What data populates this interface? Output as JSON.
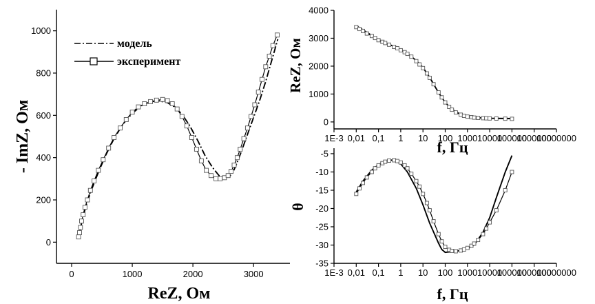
{
  "chart_data": [
    {
      "type": "scatter",
      "panel": "nyquist",
      "xlabel": "ReZ, Ом",
      "ylabel": "- ImZ, Ом",
      "xlim": [
        -250,
        3600
      ],
      "ylim": [
        -100,
        1100
      ],
      "xticks": [
        0,
        1000,
        2000,
        3000
      ],
      "yticks": [
        0,
        200,
        400,
        600,
        800,
        1000
      ],
      "legend_position": "top-left",
      "legend": {
        "model": "модель",
        "experiment": "эксперимент"
      },
      "series": [
        {
          "name": "модель",
          "style": "dash-dot",
          "x": [
            120,
            170,
            240,
            330,
            440,
            560,
            700,
            850,
            1000,
            1150,
            1300,
            1450,
            1580,
            1700,
            1820,
            1950,
            2080,
            2200,
            2320,
            2430,
            2530,
            2600,
            2660,
            2720,
            2800,
            2900,
            3000,
            3100,
            3200,
            3290,
            3360,
            3400
          ],
          "y": [
            20,
            100,
            175,
            250,
            330,
            410,
            490,
            560,
            610,
            645,
            665,
            668,
            660,
            640,
            605,
            550,
            480,
            410,
            355,
            315,
            305,
            310,
            330,
            370,
            430,
            510,
            590,
            670,
            760,
            850,
            920,
            960
          ]
        },
        {
          "name": "эксперимент",
          "style": "solid-square",
          "x": [
            115,
            130,
            145,
            165,
            190,
            220,
            260,
            310,
            370,
            440,
            520,
            610,
            700,
            800,
            900,
            1000,
            1100,
            1200,
            1300,
            1400,
            1500,
            1580,
            1660,
            1740,
            1820,
            1900,
            1980,
            2060,
            2140,
            2220,
            2300,
            2380,
            2450,
            2520,
            2580,
            2630,
            2680,
            2730,
            2780,
            2840,
            2900,
            2960,
            3020,
            3080,
            3140,
            3200,
            3260,
            3320,
            3390
          ],
          "y": [
            25,
            45,
            70,
            100,
            130,
            165,
            200,
            245,
            290,
            340,
            390,
            445,
            495,
            540,
            580,
            615,
            640,
            655,
            665,
            672,
            675,
            670,
            655,
            630,
            595,
            550,
            495,
            440,
            385,
            340,
            315,
            300,
            300,
            305,
            315,
            335,
            365,
            400,
            440,
            490,
            540,
            595,
            650,
            710,
            770,
            830,
            880,
            930,
            980
          ]
        }
      ]
    },
    {
      "type": "line",
      "panel": "bode-magnitude",
      "xlabel": "f, Гц",
      "ylabel": "ReZ, Ом",
      "xscale": "log",
      "xlim": [
        0.001,
        10000000
      ],
      "ylim": [
        -250,
        4000
      ],
      "xticks": [
        "1E-3",
        "0,01",
        "0,1",
        "1",
        "10",
        "100",
        "1000",
        "10000",
        "100000",
        "1000000",
        "10000000"
      ],
      "yticks": [
        0,
        1000,
        2000,
        3000,
        4000
      ],
      "series": [
        {
          "name": "модель",
          "x": [
            0.01,
            0.02,
            0.05,
            0.1,
            0.2,
            0.5,
            1,
            2,
            5,
            10,
            20,
            50,
            100,
            200,
            500,
            1000,
            2000,
            5000,
            10000,
            100000
          ],
          "y": [
            3450,
            3300,
            3100,
            2950,
            2850,
            2700,
            2580,
            2450,
            2200,
            1950,
            1600,
            1050,
            700,
            450,
            270,
            200,
            160,
            140,
            130,
            120
          ]
        },
        {
          "name": "эксперимент",
          "x": [
            0.01,
            0.014,
            0.02,
            0.03,
            0.05,
            0.07,
            0.1,
            0.15,
            0.2,
            0.3,
            0.5,
            0.7,
            1,
            1.5,
            2,
            3,
            5,
            7,
            10,
            15,
            20,
            30,
            50,
            70,
            100,
            150,
            200,
            300,
            500,
            700,
            1000,
            1500,
            2000,
            3000,
            5000,
            7000,
            10000,
            20000,
            50000,
            100000
          ],
          "y": [
            3400,
            3330,
            3260,
            3170,
            3080,
            3010,
            2930,
            2870,
            2830,
            2770,
            2690,
            2640,
            2570,
            2500,
            2440,
            2340,
            2180,
            2060,
            1930,
            1740,
            1580,
            1350,
            1060,
            880,
            700,
            540,
            440,
            340,
            260,
            220,
            190,
            170,
            155,
            145,
            135,
            130,
            125,
            120,
            115,
            110
          ]
        }
      ]
    },
    {
      "type": "line",
      "panel": "bode-phase",
      "xlabel": "f, Гц",
      "ylabel": "θ",
      "xscale": "log",
      "xlim": [
        0.001,
        10000000
      ],
      "ylim": [
        -35,
        -3.5
      ],
      "xticks": [
        "1E-3",
        "0,01",
        "0,1",
        "1",
        "10",
        "100",
        "1000",
        "10000",
        "100000",
        "1000000",
        "10000000"
      ],
      "yticks": [
        -35,
        -30,
        -25,
        -20,
        -15,
        -10,
        -5
      ],
      "series": [
        {
          "name": "модель",
          "x": [
            0.01,
            0.02,
            0.05,
            0.1,
            0.2,
            0.3,
            0.5,
            1,
            2,
            5,
            10,
            20,
            50,
            70,
            100,
            200,
            500,
            1000,
            2000,
            5000,
            10000,
            20000,
            50000,
            100000
          ],
          "y": [
            -15.5,
            -12.5,
            -9.5,
            -8,
            -7,
            -6.7,
            -6.8,
            -7.8,
            -10,
            -14.5,
            -19,
            -24,
            -29.5,
            -31.2,
            -32,
            -31.8,
            -31.5,
            -31,
            -30,
            -26.5,
            -22.5,
            -17,
            -10,
            -5.5
          ]
        },
        {
          "name": "эксперимент",
          "x": [
            0.01,
            0.014,
            0.02,
            0.03,
            0.05,
            0.07,
            0.1,
            0.15,
            0.2,
            0.3,
            0.5,
            0.7,
            1,
            1.5,
            2,
            3,
            5,
            7,
            10,
            15,
            20,
            30,
            50,
            70,
            100,
            150,
            200,
            300,
            500,
            700,
            1000,
            1500,
            2000,
            3000,
            5000,
            7000,
            10000,
            20000,
            50000,
            100000
          ],
          "y": [
            -16,
            -14.5,
            -13,
            -11.5,
            -10,
            -9,
            -8.2,
            -7.6,
            -7.2,
            -6.9,
            -6.8,
            -7,
            -7.4,
            -8.2,
            -9,
            -10.5,
            -12.5,
            -14,
            -16,
            -18.5,
            -20.5,
            -23.5,
            -27,
            -29,
            -30.5,
            -31.3,
            -31.6,
            -31.7,
            -31.5,
            -31.2,
            -30.8,
            -30.2,
            -29.6,
            -28.6,
            -27,
            -25.5,
            -23.8,
            -20.5,
            -15,
            -10
          ]
        }
      ]
    }
  ]
}
